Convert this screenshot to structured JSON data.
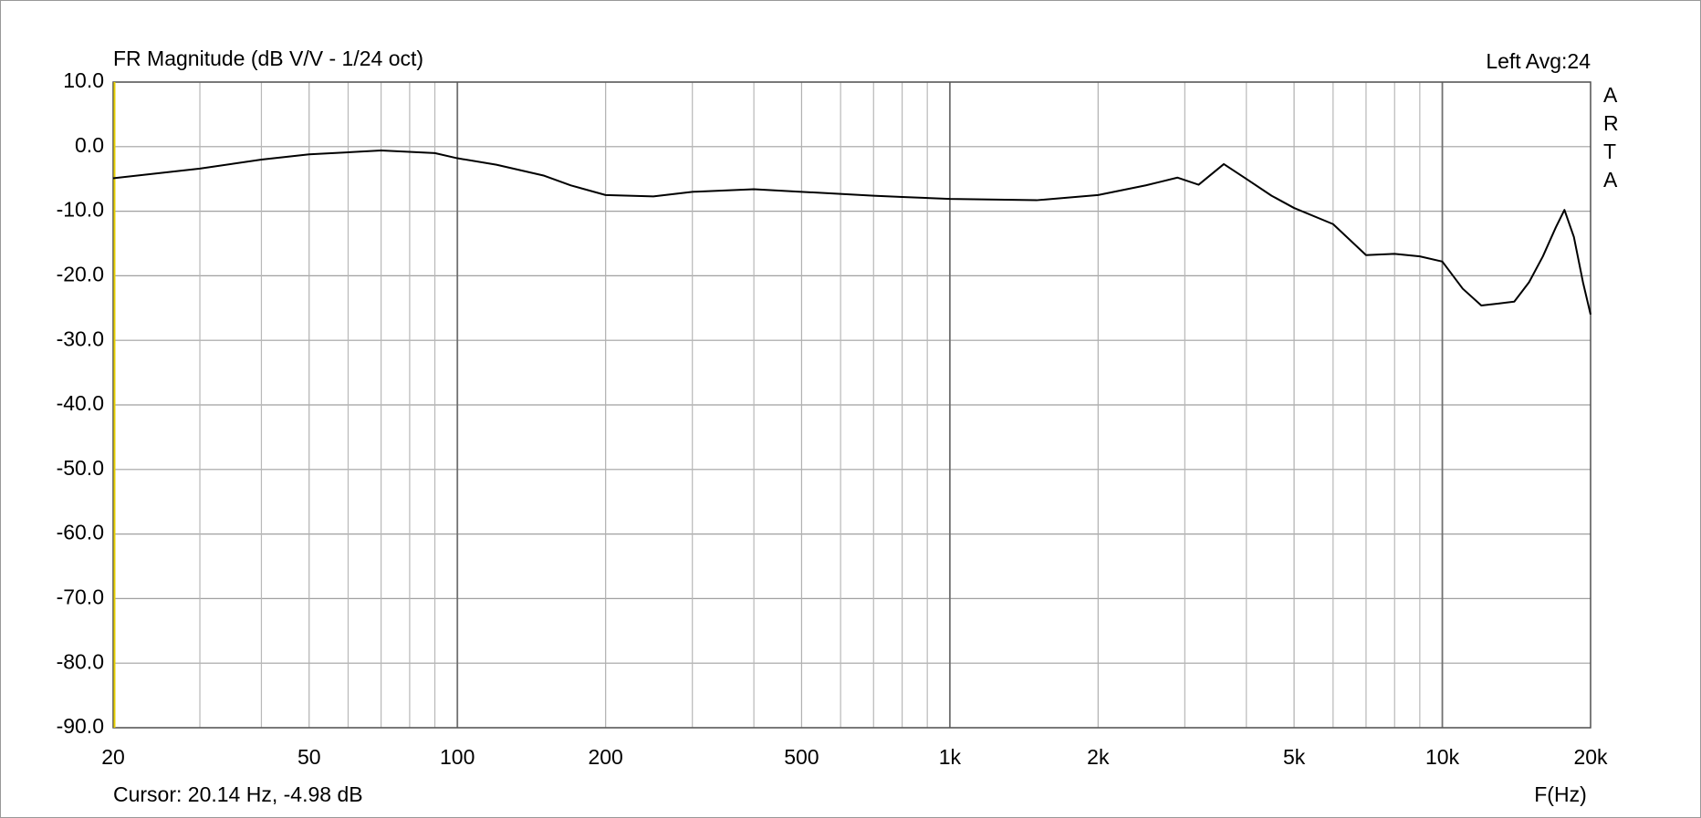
{
  "chart_data": {
    "type": "line",
    "title": "FR Magnitude (dB V/V - 1/24 oct)",
    "channel_label": "Left  Avg:24",
    "brand": [
      "A",
      "R",
      "T",
      "A"
    ],
    "cursor_label": "Cursor: 20.14 Hz, -4.98 dB",
    "x_label": "F(Hz)",
    "log_x": true,
    "grid": true,
    "color": "#000000",
    "xlim": [
      20,
      20000
    ],
    "ylim": [
      -90,
      10
    ],
    "xticks": [
      20,
      50,
      100,
      200,
      500,
      {
        "value": 1000,
        "label": "1k"
      },
      {
        "value": 2000,
        "label": "2k"
      },
      {
        "value": 5000,
        "label": "5k"
      },
      {
        "value": 10000,
        "label": "10k"
      },
      {
        "value": 20000,
        "label": "20k"
      }
    ],
    "xminor": [
      30,
      40,
      60,
      70,
      80,
      90,
      300,
      400,
      600,
      700,
      800,
      900,
      3000,
      4000,
      6000,
      7000,
      8000,
      9000
    ],
    "yticks": [
      {
        "value": 10,
        "label": "10.0"
      },
      {
        "value": 0,
        "label": "0.0"
      },
      {
        "value": -10,
        "label": "-10.0"
      },
      {
        "value": -20,
        "label": "-20.0"
      },
      {
        "value": -30,
        "label": "-30.0"
      },
      {
        "value": -40,
        "label": "-40.0"
      },
      {
        "value": -50,
        "label": "-50.0"
      },
      {
        "value": -60,
        "label": "-60.0"
      },
      {
        "value": -70,
        "label": "-70.0"
      },
      {
        "value": -80,
        "label": "-80.0"
      },
      {
        "value": -90,
        "label": "-90.0"
      }
    ],
    "x": [
      20,
      30,
      40,
      50,
      70,
      90,
      100,
      120,
      150,
      170,
      200,
      250,
      300,
      400,
      500,
      700,
      800,
      1000,
      1500,
      2000,
      2500,
      2900,
      3200,
      3600,
      4000,
      4500,
      5000,
      6000,
      7000,
      8000,
      9000,
      10000,
      11000,
      12000,
      13000,
      14000,
      15000,
      16000,
      17000,
      17700,
      18500,
      19300,
      20000
    ],
    "values": [
      -4.9,
      -3.4,
      -2.0,
      -1.2,
      -0.6,
      -1.0,
      -1.8,
      -2.8,
      -4.5,
      -6.0,
      -7.5,
      -7.7,
      -7.0,
      -6.6,
      -7.0,
      -7.6,
      -7.8,
      -8.1,
      -8.3,
      -7.5,
      -6.0,
      -4.8,
      -5.9,
      -2.7,
      -5.0,
      -7.6,
      -9.5,
      -12.0,
      -16.8,
      -16.6,
      -17.0,
      -17.8,
      -22.0,
      -24.6,
      -24.3,
      -24.0,
      -21.0,
      -17.0,
      -12.5,
      -9.8,
      -14.0,
      -21.0,
      -26.0
    ]
  }
}
